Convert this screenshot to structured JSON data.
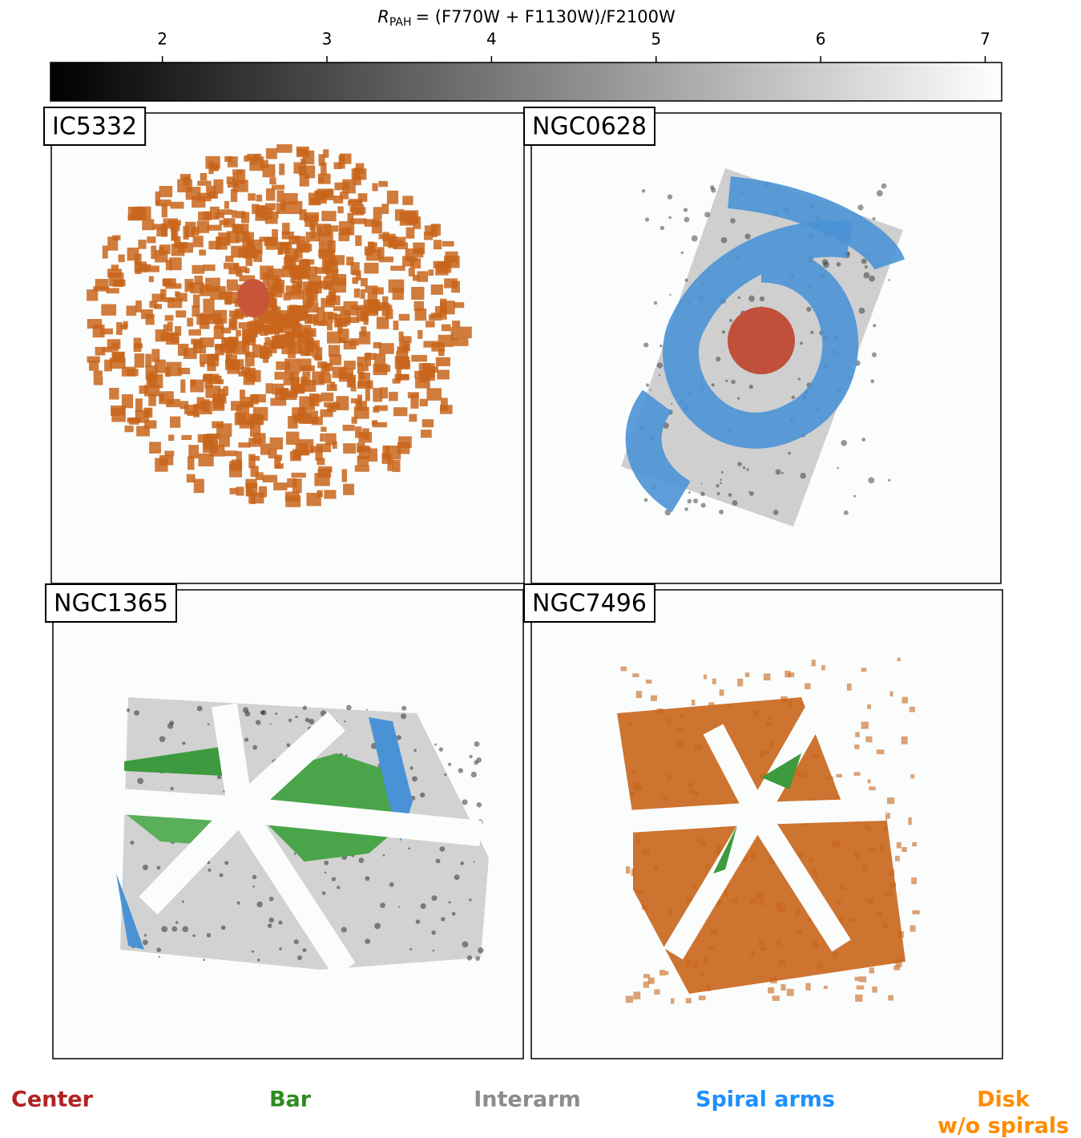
{
  "chart_data": {
    "type": "image-grid",
    "colorbar": {
      "label": {
        "symbol": "R",
        "subscript": "PAH",
        "expression": "= (F770W + F1130W)/F2100W"
      },
      "lim": [
        1.32,
        7.1
      ],
      "ticks": [
        2,
        3,
        4,
        5,
        6,
        7
      ],
      "colors": [
        "#000000",
        "#ffffff"
      ]
    },
    "panels": [
      {
        "title": "IC5332"
      },
      {
        "title": "NGC0628"
      },
      {
        "title": "NGC1365"
      },
      {
        "title": "NGC7496"
      }
    ],
    "legend": [
      {
        "name": [
          "Center"
        ],
        "color": "#b22222"
      },
      {
        "name": [
          "Bar"
        ],
        "color": "#2e8b22"
      },
      {
        "name": [
          "Interarm"
        ],
        "color": "#8c8c8c"
      },
      {
        "name": [
          "Spiral arms"
        ],
        "color": "#1e90ff"
      },
      {
        "name": [
          "Disk",
          "w/o spirals"
        ],
        "color": "#ff8c00"
      }
    ]
  }
}
